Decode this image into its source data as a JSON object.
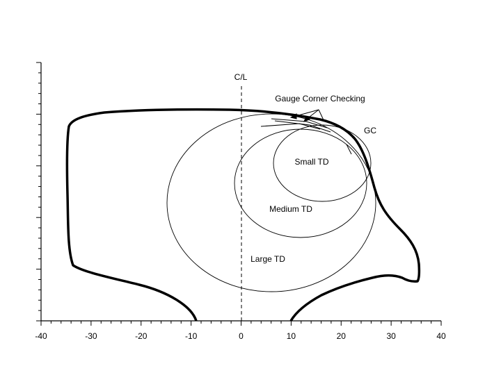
{
  "labels": {
    "centerline": "C/L",
    "gauge_corner_checking": "Gauge Corner Checking",
    "gc": "GC",
    "small_td": "Small TD",
    "medium_td": "Medium TD",
    "large_td": "Large TD"
  },
  "x_axis": {
    "ticks": [
      -40,
      -30,
      -20,
      -10,
      0,
      10,
      20,
      30,
      40
    ]
  }
}
